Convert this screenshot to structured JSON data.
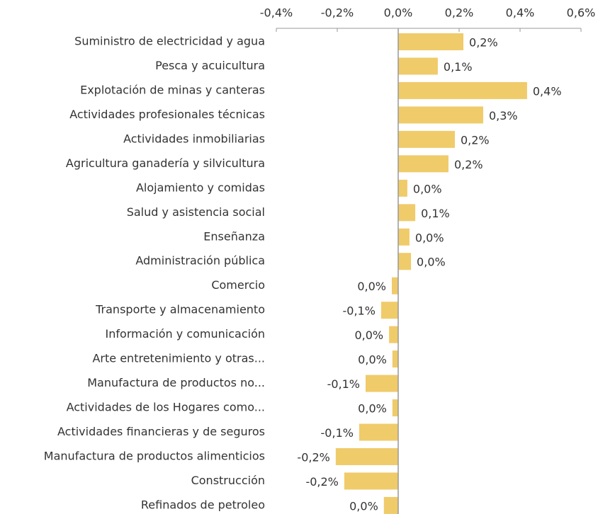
{
  "chart_data": {
    "type": "hbar",
    "categories": [
      "Suministro de electricidad y agua",
      "Pesca y acuicultura",
      "Explotación de minas y canteras",
      "Actividades profesionales técnicas",
      "Actividades inmobiliarias",
      "Agricultura  ganadería y silvicultura",
      "Alojamiento y comidas",
      "Salud y asistencia social",
      "Enseñanza",
      "Administración pública",
      "Comercio",
      "Transporte y almacenamiento",
      "Información y comunicación",
      "Arte entretenimiento y otras...",
      "Manufactura de productos no...",
      "Actividades de los Hogares como...",
      "Actividades financieras y de seguros",
      "Manufactura de productos alimenticios",
      "Construcción",
      "Refinados de petroleo"
    ],
    "values": [
      0.214,
      0.13,
      0.423,
      0.279,
      0.186,
      0.165,
      0.03,
      0.056,
      0.037,
      0.042,
      -0.021,
      -0.056,
      -0.03,
      -0.019,
      -0.107,
      -0.019,
      -0.128,
      -0.205,
      -0.177,
      -0.047
    ],
    "value_labels": [
      "0,2%",
      "0,1%",
      "0,4%",
      "0,3%",
      "0,2%",
      "0,2%",
      "0,0%",
      "0,1%",
      "0,0%",
      "0,0%",
      "0,0%",
      "-0,1%",
      "0,0%",
      "0,0%",
      "-0,1%",
      "0,0%",
      "-0,1%",
      "-0,2%",
      "-0,2%",
      "0,0%"
    ],
    "color": "#f0cb6a",
    "xlim": [
      -0.4,
      0.6
    ],
    "xticks": [
      {
        "value": -0.4,
        "label": "-0,4%"
      },
      {
        "value": -0.2,
        "label": "-0,2%"
      },
      {
        "value": 0,
        "label": "0,0%"
      },
      {
        "value": 0.2,
        "label": "0,2%"
      },
      {
        "value": 0.4,
        "label": "0,4%"
      },
      {
        "value": 0.6,
        "label": "0,6%"
      }
    ]
  }
}
